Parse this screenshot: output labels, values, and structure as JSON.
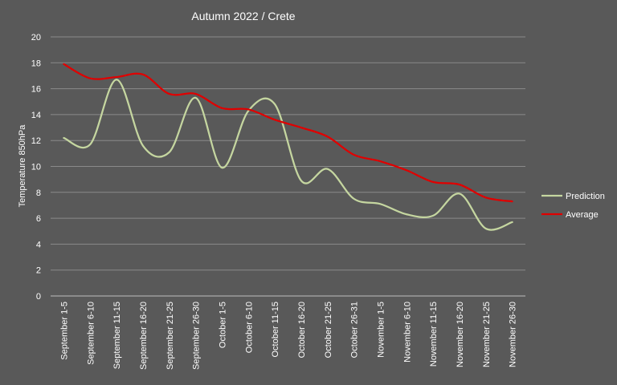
{
  "chart_data": {
    "type": "line",
    "title": "Autumn  2022 / Crete",
    "xlabel": "",
    "ylabel": "Temperature 850hPa",
    "ylim": [
      0,
      20
    ],
    "yticks": [
      "0",
      "2",
      "4",
      "6",
      "8",
      "10",
      "12",
      "14",
      "16",
      "18",
      "20"
    ],
    "grid": true,
    "legend_position": "right",
    "categories": [
      "September 1-5",
      "September 6-10",
      "September 11-15",
      "September 16-20",
      "September 21-25",
      "September 26-30",
      "October 1-5",
      "October 6-10",
      "October 11-15",
      "October 16-20",
      "October 21-25",
      "October 26-31",
      "November 1-5",
      "November 6-10",
      "November 11-15",
      "November 16-20",
      "November 21-25",
      "November 26-30"
    ],
    "series": [
      {
        "name": "Prediction",
        "color": "#c5d6a0",
        "values": [
          12.2,
          11.7,
          16.7,
          11.6,
          11.1,
          15.3,
          9.9,
          14.3,
          14.8,
          8.9,
          9.8,
          7.5,
          7.1,
          6.3,
          6.2,
          7.9,
          5.2,
          5.7
        ]
      },
      {
        "name": "Average",
        "color": "#e00000",
        "values": [
          17.9,
          16.8,
          16.9,
          17.1,
          15.6,
          15.6,
          14.5,
          14.4,
          13.6,
          13.0,
          12.3,
          10.9,
          10.4,
          9.7,
          8.8,
          8.6,
          7.6,
          7.3
        ]
      }
    ]
  }
}
